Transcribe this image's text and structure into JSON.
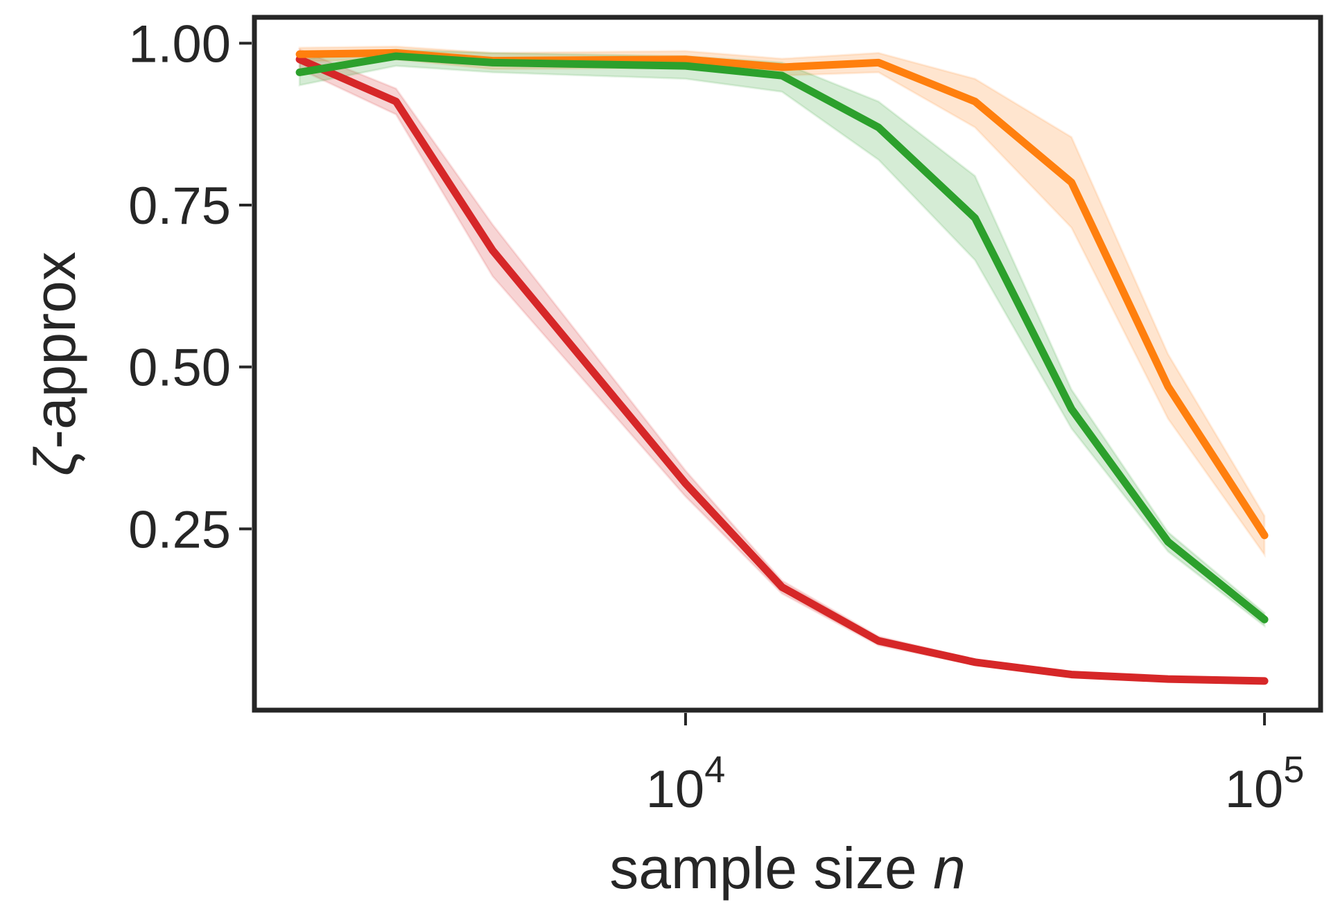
{
  "chart_data": {
    "type": "line",
    "title": "",
    "xlabel": {
      "prefix": "sample size ",
      "variable": "n"
    },
    "ylabel": {
      "symbol": "ζ",
      "suffix": "-approx"
    },
    "xscale": "log",
    "xlim": [
      1800,
      125000
    ],
    "ylim": [
      -0.03,
      1.04
    ],
    "grid": false,
    "x_ticks": [
      {
        "value": 10000,
        "base": "10",
        "exp": "4"
      },
      {
        "value": 100000,
        "base": "10",
        "exp": "5"
      }
    ],
    "y_ticks": [
      {
        "value": 0.25,
        "label": "0.25"
      },
      {
        "value": 0.5,
        "label": "0.50"
      },
      {
        "value": 0.75,
        "label": "0.75"
      },
      {
        "value": 1.0,
        "label": "1.00"
      }
    ],
    "x": [
      2154,
      3162,
      4642,
      10000,
      14678,
      21544,
      31623,
      46416,
      68129,
      100000
    ],
    "series": [
      {
        "name": "red",
        "color": "#d62728",
        "values": [
          0.975,
          0.91,
          0.68,
          0.32,
          0.16,
          0.077,
          0.044,
          0.025,
          0.018,
          0.015
        ],
        "lower": [
          0.96,
          0.89,
          0.64,
          0.3,
          0.15,
          0.07,
          0.04,
          0.022,
          0.016,
          0.013
        ],
        "upper": [
          0.99,
          0.93,
          0.72,
          0.34,
          0.17,
          0.084,
          0.048,
          0.028,
          0.02,
          0.017
        ]
      },
      {
        "name": "orange",
        "color": "#ff7f0e",
        "values": [
          0.983,
          0.985,
          0.973,
          0.975,
          0.963,
          0.97,
          0.91,
          0.785,
          0.47,
          0.24
        ],
        "lower": [
          0.972,
          0.975,
          0.96,
          0.962,
          0.95,
          0.955,
          0.87,
          0.715,
          0.42,
          0.21
        ],
        "upper": [
          0.993,
          0.995,
          0.985,
          0.988,
          0.976,
          0.985,
          0.945,
          0.855,
          0.52,
          0.27
        ]
      },
      {
        "name": "green",
        "color": "#2ca02c",
        "values": [
          0.955,
          0.98,
          0.97,
          0.965,
          0.95,
          0.87,
          0.73,
          0.435,
          0.23,
          0.11
        ],
        "lower": [
          0.935,
          0.965,
          0.955,
          0.945,
          0.925,
          0.82,
          0.665,
          0.405,
          0.215,
          0.1
        ],
        "upper": [
          0.975,
          0.99,
          0.985,
          0.98,
          0.97,
          0.91,
          0.795,
          0.465,
          0.245,
          0.12
        ]
      }
    ]
  }
}
